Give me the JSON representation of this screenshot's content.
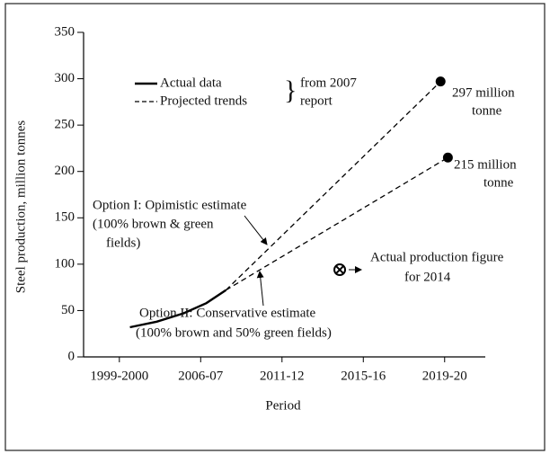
{
  "chart_data": {
    "type": "line",
    "xlabel": "Period",
    "ylabel": "Steel production, million tonnes",
    "xlim": [
      -0.44,
      4.5
    ],
    "xticks": [
      {
        "value": 0,
        "label": "1999-2000"
      },
      {
        "value": 1,
        "label": "2006-07"
      },
      {
        "value": 2,
        "label": "2011-12"
      },
      {
        "value": 3,
        "label": "2015-16"
      },
      {
        "value": 4,
        "label": "2019-20"
      }
    ],
    "ylim": [
      0,
      350
    ],
    "yticks": [
      0,
      50,
      100,
      150,
      200,
      250,
      300,
      350
    ],
    "series": [
      {
        "name": "Actual data",
        "dashed": false,
        "color": "#000000",
        "x": [
          0.13,
          0.46,
          0.79,
          1.07,
          1.31
        ],
        "values": [
          32,
          38,
          47,
          58,
          72
        ]
      },
      {
        "name": "Projected trends",
        "dashed": true,
        "color": "#000000",
        "x": [
          1.31,
          3.95
        ],
        "values": [
          72,
          297
        ]
      },
      {
        "dashed": true,
        "color": "#000000",
        "x": [
          1.31,
          4.04
        ],
        "values": [
          72,
          215
        ]
      }
    ],
    "legend_note": [
      "from 2007",
      "report"
    ],
    "actual_2014": {
      "x": 2.71,
      "value": 94
    },
    "annotations": [
      {
        "lines": [
          "297 million",
          "tonne"
        ]
      },
      {
        "lines": [
          "215 million",
          "tonne"
        ]
      },
      {
        "lines": [
          "Option I: Opimistic estimate",
          "(100% brown & green",
          "fields)"
        ]
      },
      {
        "lines": [
          "Option II: Conservative estimate",
          "(100% brown and 50% green fields)"
        ]
      },
      {
        "lines": [
          "Actual production figure",
          "for 2014"
        ]
      }
    ]
  }
}
